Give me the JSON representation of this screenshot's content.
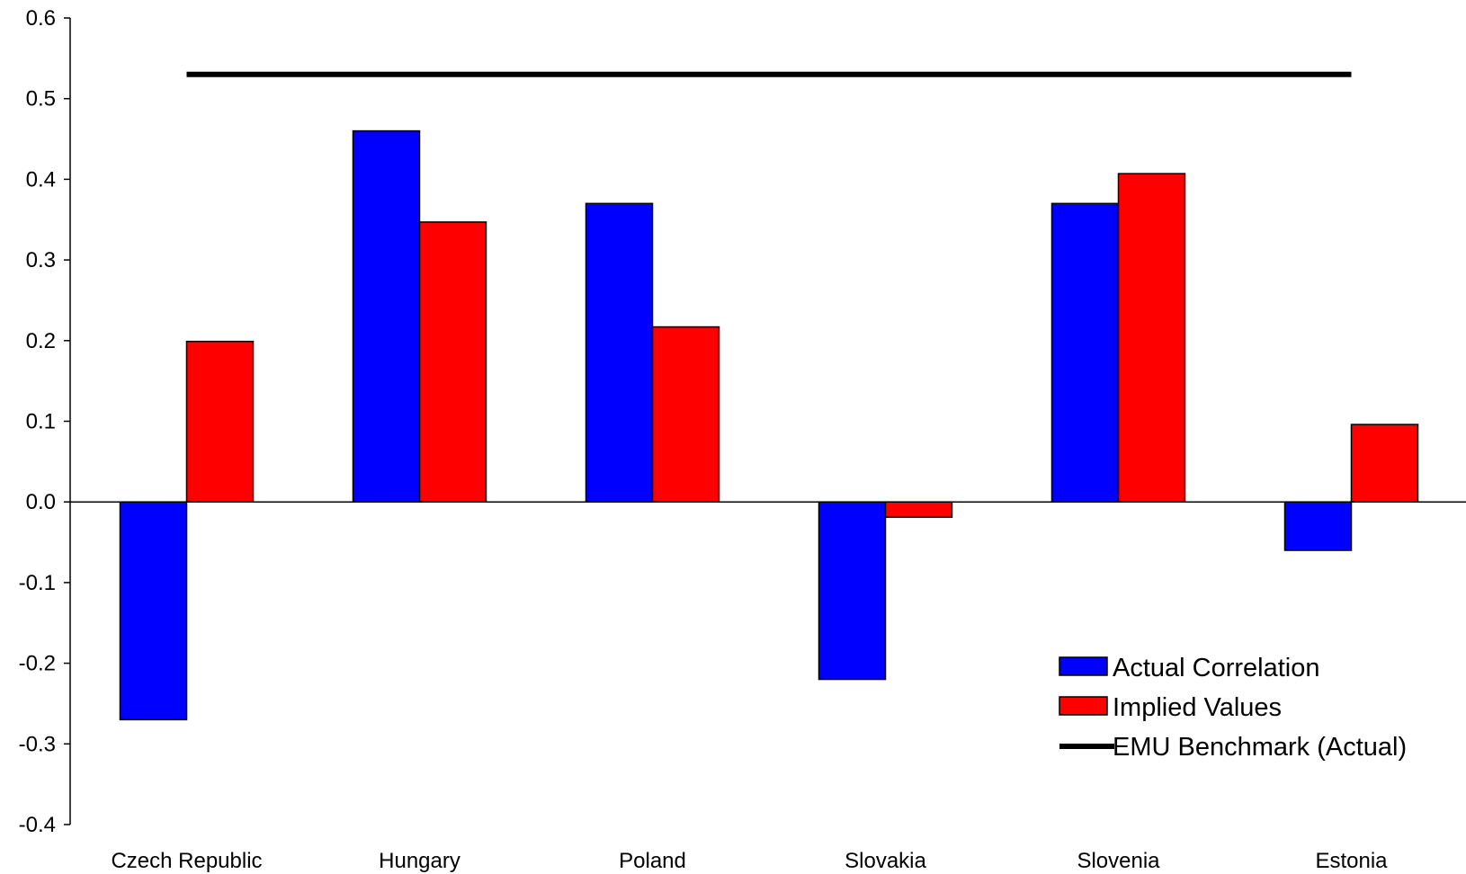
{
  "chart_data": {
    "type": "bar",
    "categories": [
      "Czech Republic",
      "Hungary",
      "Poland",
      "Slovakia",
      "Slovenia",
      "Estonia"
    ],
    "series": [
      {
        "name": "Actual Correlation",
        "color": "#0000ff",
        "values": [
          -0.27,
          0.46,
          0.37,
          -0.22,
          0.37,
          -0.06
        ]
      },
      {
        "name": "Implied Values",
        "color": "#ff0000",
        "values": [
          0.199,
          0.347,
          0.217,
          -0.019,
          0.407,
          0.096
        ]
      }
    ],
    "benchmark": {
      "name": "EMU Benchmark (Actual)",
      "value": 0.53,
      "color": "#000000"
    },
    "ylim": [
      -0.4,
      0.6
    ],
    "yticks": [
      "-0.4",
      "-0.3",
      "-0.2",
      "-0.1",
      "0.0",
      "0.1",
      "0.2",
      "0.3",
      "0.4",
      "0.5",
      "0.6"
    ],
    "title": "",
    "xlabel": "",
    "ylabel": "",
    "grid": false,
    "legend_position": "bottom-right"
  }
}
